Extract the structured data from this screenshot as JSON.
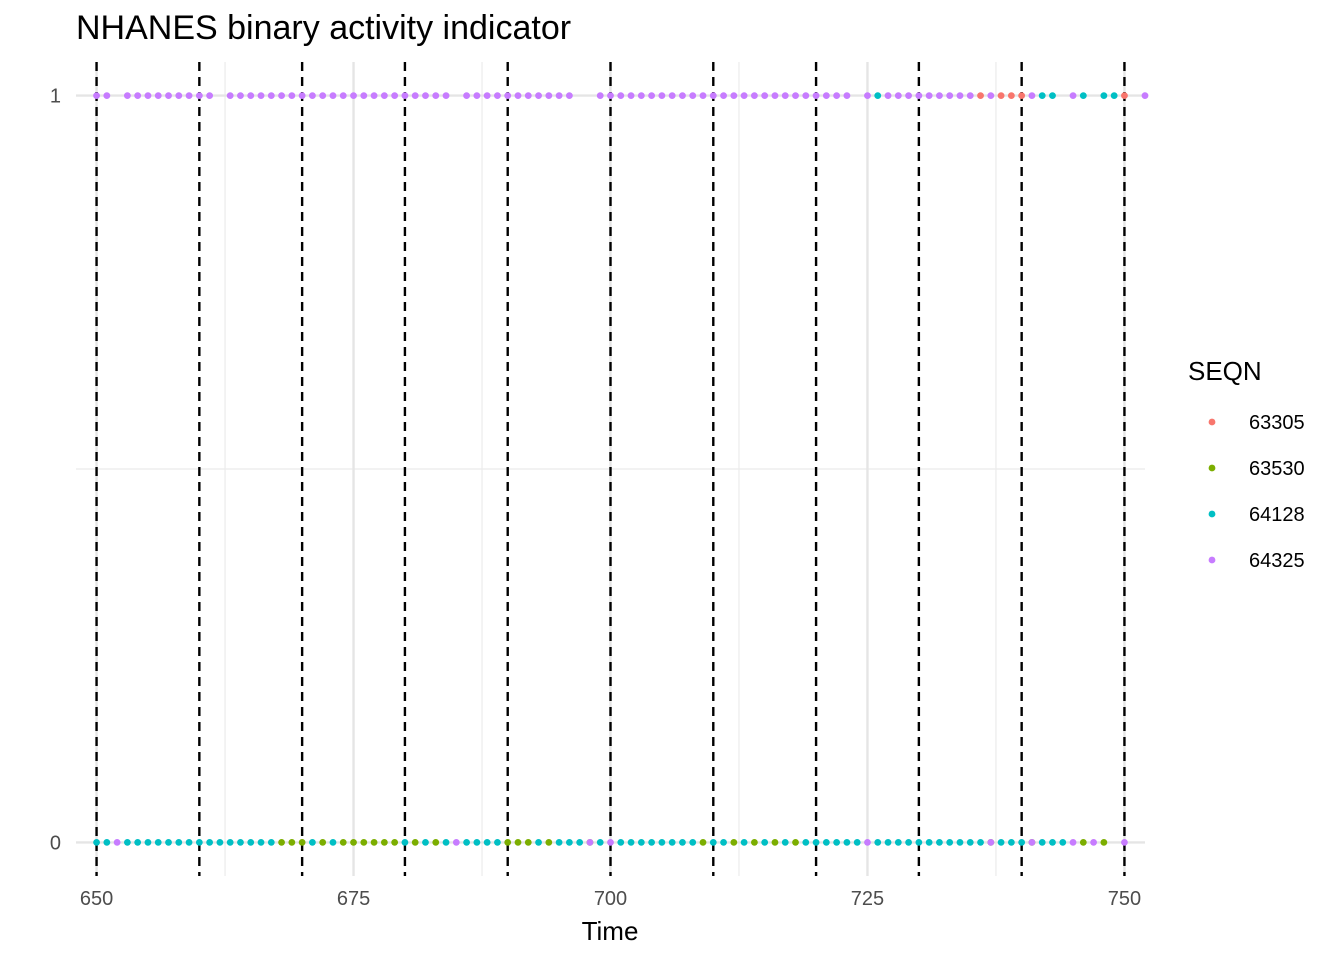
{
  "chart_data": {
    "type": "scatter",
    "title": "NHANES binary activity indicator",
    "xlabel": "Time",
    "ylabel": "",
    "xlim": [
      648,
      752
    ],
    "ylim": [
      -0.045,
      1.045
    ],
    "x_ticks": [
      650,
      675,
      700,
      725,
      750
    ],
    "x_tick_labels": [
      "650",
      "675",
      "700",
      "725",
      "750"
    ],
    "y_ticks": [
      0,
      1
    ],
    "y_tick_labels": [
      "0",
      "1"
    ],
    "grid": true,
    "vlines": [
      650,
      660,
      670,
      680,
      690,
      700,
      710,
      720,
      730,
      740,
      750
    ],
    "vline_style": "dashed",
    "legend": {
      "title": "SEQN",
      "position": "right"
    },
    "series": [
      {
        "name": "63305",
        "color": "#F8766D",
        "x": [
          736,
          738,
          739,
          740,
          750
        ],
        "y": [
          1,
          1,
          1,
          1,
          1
        ]
      },
      {
        "name": "63530",
        "color": "#7CAE00",
        "x": [
          668,
          669,
          670,
          672,
          674,
          675,
          676,
          677,
          678,
          679,
          681,
          683,
          690,
          691,
          692,
          694,
          698,
          709,
          712,
          714,
          716,
          718,
          737,
          741,
          746,
          748
        ],
        "y": [
          0,
          0,
          0,
          0,
          0,
          0,
          0,
          0,
          0,
          0,
          0,
          0,
          0,
          0,
          0,
          0,
          0,
          0,
          0,
          0,
          0,
          0,
          0,
          0,
          0,
          0
        ]
      },
      {
        "name": "64128",
        "color": "#00BFC4",
        "x": [
          650,
          651,
          653,
          654,
          655,
          656,
          657,
          658,
          659,
          660,
          661,
          662,
          663,
          664,
          665,
          666,
          667,
          671,
          673,
          680,
          682,
          684,
          686,
          687,
          688,
          689,
          693,
          695,
          696,
          697,
          699,
          701,
          702,
          703,
          704,
          705,
          706,
          707,
          708,
          710,
          711,
          713,
          715,
          717,
          719,
          720,
          721,
          722,
          723,
          724,
          726,
          727,
          728,
          729,
          730,
          731,
          732,
          733,
          734,
          735,
          736,
          738,
          739,
          740,
          742,
          743,
          744,
          726,
          742,
          743,
          746,
          748,
          749
        ],
        "y": [
          0,
          0,
          0,
          0,
          0,
          0,
          0,
          0,
          0,
          0,
          0,
          0,
          0,
          0,
          0,
          0,
          0,
          0,
          0,
          0,
          0,
          0,
          0,
          0,
          0,
          0,
          0,
          0,
          0,
          0,
          0,
          0,
          0,
          0,
          0,
          0,
          0,
          0,
          0,
          0,
          0,
          0,
          0,
          0,
          0,
          0,
          0,
          0,
          0,
          0,
          0,
          0,
          0,
          0,
          0,
          0,
          0,
          0,
          0,
          0,
          0,
          0,
          0,
          0,
          0,
          0,
          0,
          1,
          1,
          1,
          1,
          1,
          1
        ]
      },
      {
        "name": "64325",
        "color": "#C77CFF",
        "x": [
          650,
          651,
          653,
          654,
          655,
          656,
          657,
          658,
          659,
          660,
          661,
          663,
          664,
          665,
          666,
          667,
          668,
          669,
          670,
          671,
          672,
          673,
          674,
          675,
          676,
          677,
          678,
          679,
          680,
          681,
          682,
          683,
          684,
          686,
          687,
          688,
          689,
          690,
          691,
          692,
          693,
          694,
          695,
          696,
          699,
          700,
          701,
          702,
          703,
          704,
          705,
          706,
          707,
          708,
          709,
          710,
          711,
          712,
          713,
          714,
          715,
          716,
          717,
          718,
          719,
          720,
          721,
          722,
          723,
          725,
          727,
          728,
          729,
          730,
          731,
          732,
          733,
          734,
          735,
          737,
          741,
          745,
          752,
          652,
          685,
          698,
          700,
          725,
          737,
          741,
          745,
          747,
          750
        ],
        "y": [
          1,
          1,
          1,
          1,
          1,
          1,
          1,
          1,
          1,
          1,
          1,
          1,
          1,
          1,
          1,
          1,
          1,
          1,
          1,
          1,
          1,
          1,
          1,
          1,
          1,
          1,
          1,
          1,
          1,
          1,
          1,
          1,
          1,
          1,
          1,
          1,
          1,
          1,
          1,
          1,
          1,
          1,
          1,
          1,
          1,
          1,
          1,
          1,
          1,
          1,
          1,
          1,
          1,
          1,
          1,
          1,
          1,
          1,
          1,
          1,
          1,
          1,
          1,
          1,
          1,
          1,
          1,
          1,
          1,
          1,
          1,
          1,
          1,
          1,
          1,
          1,
          1,
          1,
          1,
          1,
          1,
          1,
          1,
          0,
          0,
          0,
          0,
          0,
          0,
          0,
          0,
          0,
          0
        ]
      }
    ]
  }
}
